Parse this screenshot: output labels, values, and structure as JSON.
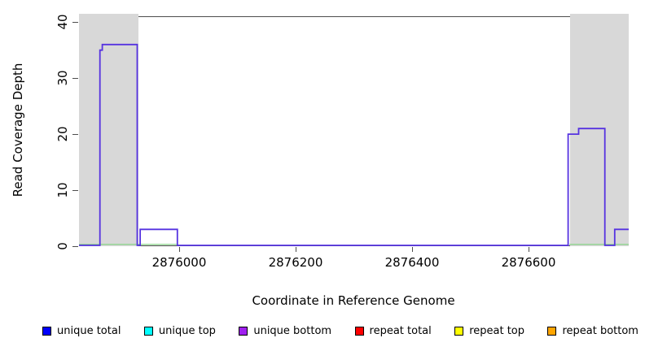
{
  "chart_data": {
    "type": "line",
    "title": "",
    "xlabel": "Coordinate in Reference Genome",
    "ylabel": "Read Coverage Depth",
    "xlim": [
      2875828,
      2876772
    ],
    "ylim": [
      0,
      41.2
    ],
    "grid": false,
    "legend_position": "bottom",
    "x_ticks": {
      "values": [
        2876000,
        2876200,
        2876400,
        2876600
      ],
      "labels": [
        "2876000",
        "2876200",
        "2876400",
        "2876600"
      ]
    },
    "y_ticks": {
      "values": [
        0,
        10,
        20,
        30,
        40
      ],
      "labels": [
        "0",
        "10",
        "20",
        "30",
        "40"
      ]
    },
    "shaded_regions": [
      {
        "name": "repeat-region-left",
        "start": 2875828,
        "end": 2875930,
        "color": "#d8d8d8"
      },
      {
        "name": "repeat-region-right",
        "start": 2876672,
        "end": 2876772,
        "color": "#d8d8d8"
      }
    ],
    "series": [
      {
        "name": "zero-depth-overlap",
        "color": "#8fd48f",
        "depth": 0,
        "segments": [
          [
            2875828,
            2875997
          ],
          [
            2876670,
            2876772
          ]
        ]
      },
      {
        "name": "unique bottom",
        "color": "#5633e0",
        "step_points": [
          [
            2875828,
            0
          ],
          [
            2875864,
            0
          ],
          [
            2875864,
            35
          ],
          [
            2875868,
            35
          ],
          [
            2875868,
            36
          ],
          [
            2875928,
            36
          ],
          [
            2875928,
            0
          ],
          [
            2875933,
            0
          ],
          [
            2875933,
            3
          ],
          [
            2875997,
            3
          ],
          [
            2875997,
            0
          ],
          [
            2876668,
            0
          ],
          [
            2876668,
            20
          ],
          [
            2876686,
            20
          ],
          [
            2876686,
            21
          ],
          [
            2876731,
            21
          ],
          [
            2876731,
            0
          ],
          [
            2876748,
            0
          ],
          [
            2876748,
            3
          ],
          [
            2876772,
            3
          ]
        ]
      }
    ],
    "legend": [
      {
        "label": "unique total",
        "color": "#0000ff"
      },
      {
        "label": "unique top",
        "color": "#00ffff"
      },
      {
        "label": "unique bottom",
        "color": "#a020f0"
      },
      {
        "label": "repeat total",
        "color": "#ff0000"
      },
      {
        "label": "repeat top",
        "color": "#ffff00"
      },
      {
        "label": "repeat bottom",
        "color": "#ffa500"
      }
    ]
  }
}
